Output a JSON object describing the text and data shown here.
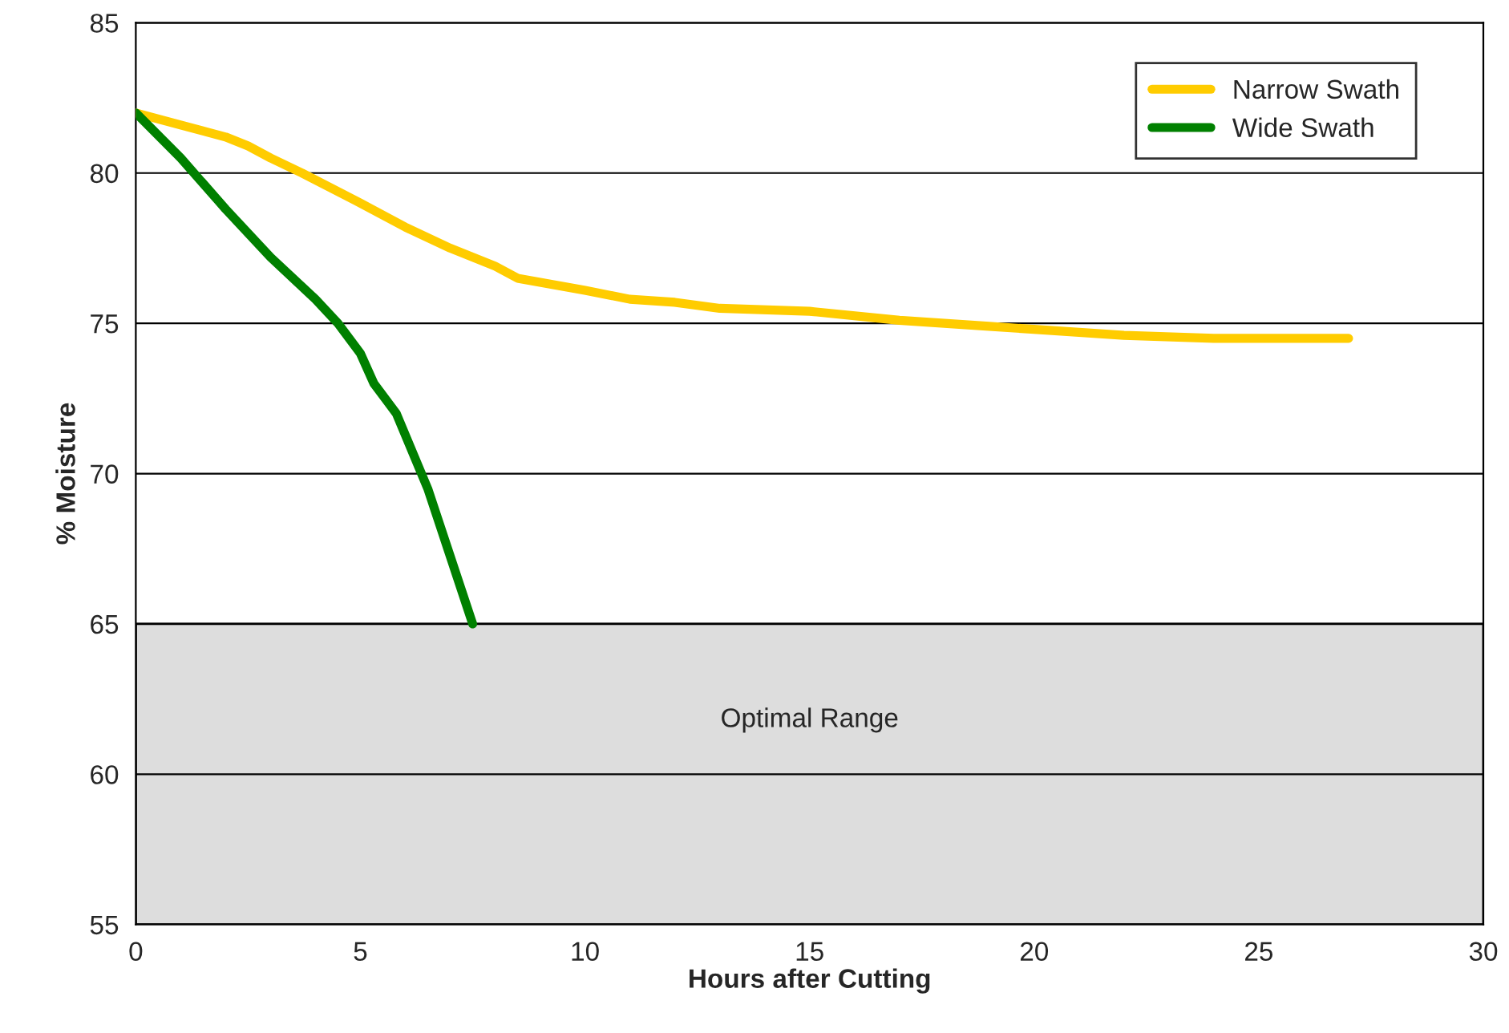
{
  "chart_data": {
    "type": "line",
    "xlabel": "Hours after Cutting",
    "ylabel": "% Moisture",
    "series": [
      {
        "name": "Narrow Swath",
        "color": "#ffcc00",
        "x": [
          0,
          1,
          2,
          2.5,
          3,
          3.7,
          5,
          6,
          7,
          8,
          8.5,
          10,
          11,
          12,
          13,
          15,
          17,
          19,
          20,
          21,
          22,
          24,
          27
        ],
        "values": [
          82,
          81.6,
          81.2,
          80.9,
          80.5,
          80,
          79,
          78.2,
          77.5,
          76.9,
          76.5,
          76.1,
          75.8,
          75.7,
          75.5,
          75.4,
          75.1,
          74.9,
          74.8,
          74.7,
          74.6,
          74.5,
          74.5
        ]
      },
      {
        "name": "Wide Swath",
        "color": "#008000",
        "x": [
          0,
          1,
          2,
          3,
          4,
          4.5,
          5,
          5.3,
          5.8,
          6.5,
          7.5
        ],
        "values": [
          82,
          80.5,
          78.8,
          77.2,
          75.8,
          75,
          74,
          73,
          72,
          69.5,
          65
        ]
      }
    ],
    "bands": [
      {
        "axis": "y",
        "from": 55,
        "to": 65,
        "label": "Optimal Range",
        "color": "#dddddd"
      }
    ],
    "xlim": [
      0,
      30
    ],
    "xticks": [
      0,
      5,
      10,
      15,
      20,
      25,
      30
    ],
    "ylim": [
      55,
      85
    ],
    "yticks": [
      55,
      60,
      65,
      70,
      75,
      80,
      85
    ],
    "grid": "y",
    "legend": "top right",
    "line_style": "solid",
    "marker": "none"
  }
}
